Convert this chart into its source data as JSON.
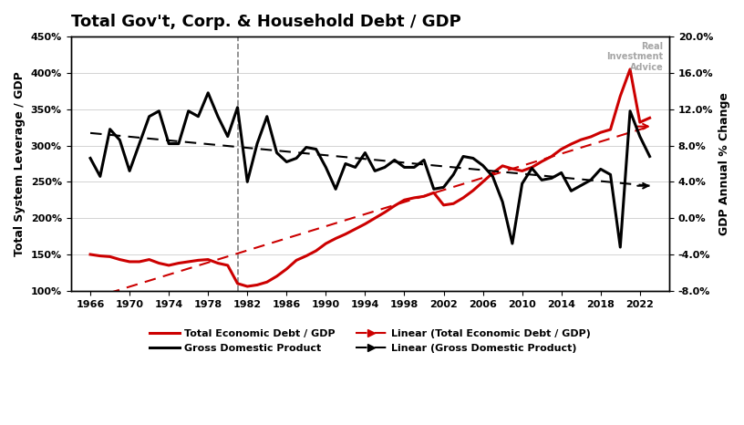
{
  "title": "Total Gov't, Corp. & Household Debt / GDP",
  "ylabel_left": "Total System Leverage / GDP",
  "ylabel_right": "GDP Annual % Change",
  "xlabel": "",
  "background_color": "#ffffff",
  "vline_x": 1981,
  "left_ylim": [
    1.0,
    4.5
  ],
  "right_ylim": [
    -0.08,
    0.2
  ],
  "left_yticks": [
    1.0,
    1.5,
    2.0,
    2.5,
    3.0,
    3.5,
    4.0,
    4.5
  ],
  "left_ytick_labels": [
    "100%",
    "150%",
    "200%",
    "250%",
    "300%",
    "350%",
    "400%",
    "450%"
  ],
  "right_yticks": [
    -0.08,
    -0.04,
    0.0,
    0.04,
    0.08,
    0.12,
    0.16,
    0.2
  ],
  "right_ytick_labels": [
    "-8.0%",
    "-4.0%",
    "0.0%",
    "4.0%",
    "8.0%",
    "12.0%",
    "16.0%",
    "20.0%"
  ],
  "xticks": [
    1966,
    1970,
    1974,
    1978,
    1982,
    1986,
    1990,
    1994,
    1998,
    2002,
    2006,
    2010,
    2014,
    2018,
    2022
  ],
  "debt_color": "#cc0000",
  "gdp_color": "#000000",
  "debt_trend_color": "#cc0000",
  "gdp_trend_color": "#000000",
  "debt_linewidth": 2.2,
  "gdp_linewidth": 2.2,
  "trend_linewidth": 1.5,
  "years_debt": [
    1966,
    1967,
    1968,
    1969,
    1970,
    1971,
    1972,
    1973,
    1974,
    1975,
    1976,
    1977,
    1978,
    1979,
    1980,
    1981,
    1982,
    1983,
    1984,
    1985,
    1986,
    1987,
    1988,
    1989,
    1990,
    1991,
    1992,
    1993,
    1994,
    1995,
    1996,
    1997,
    1998,
    1999,
    2000,
    2001,
    2002,
    2003,
    2004,
    2005,
    2006,
    2007,
    2008,
    2009,
    2010,
    2011,
    2012,
    2013,
    2014,
    2015,
    2016,
    2017,
    2018,
    2019,
    2020,
    2021,
    2022,
    2023
  ],
  "debt_values": [
    1.5,
    1.48,
    1.47,
    1.43,
    1.4,
    1.4,
    1.43,
    1.38,
    1.35,
    1.38,
    1.4,
    1.42,
    1.43,
    1.38,
    1.35,
    1.1,
    1.06,
    1.08,
    1.12,
    1.2,
    1.3,
    1.42,
    1.48,
    1.55,
    1.65,
    1.72,
    1.78,
    1.85,
    1.92,
    2.0,
    2.08,
    2.17,
    2.25,
    2.28,
    2.3,
    2.35,
    2.18,
    2.2,
    2.28,
    2.38,
    2.5,
    2.62,
    2.72,
    2.68,
    2.65,
    2.7,
    2.78,
    2.85,
    2.95,
    3.02,
    3.08,
    3.12,
    3.18,
    3.22,
    3.68,
    4.05,
    3.32,
    3.38
  ],
  "years_gdp": [
    1966,
    1967,
    1968,
    1969,
    1970,
    1971,
    1972,
    1973,
    1974,
    1975,
    1976,
    1977,
    1978,
    1979,
    1980,
    1981,
    1982,
    1983,
    1984,
    1985,
    1986,
    1987,
    1988,
    1989,
    1990,
    1991,
    1992,
    1993,
    1994,
    1995,
    1996,
    1997,
    1998,
    1999,
    2000,
    2001,
    2002,
    2003,
    2004,
    2005,
    2006,
    2007,
    2008,
    2009,
    2010,
    2011,
    2012,
    2013,
    2014,
    2015,
    2016,
    2017,
    2018,
    2019,
    2020,
    2021,
    2022,
    2023
  ],
  "gdp_values": [
    0.066,
    0.046,
    0.098,
    0.086,
    0.052,
    0.082,
    0.112,
    0.118,
    0.082,
    0.082,
    0.118,
    0.112,
    0.138,
    0.112,
    0.09,
    0.122,
    0.04,
    0.082,
    0.112,
    0.072,
    0.062,
    0.066,
    0.078,
    0.076,
    0.056,
    0.032,
    0.06,
    0.056,
    0.072,
    0.052,
    0.056,
    0.064,
    0.056,
    0.056,
    0.064,
    0.032,
    0.034,
    0.048,
    0.068,
    0.066,
    0.058,
    0.046,
    0.018,
    -0.028,
    0.038,
    0.055,
    0.042,
    0.044,
    0.05,
    0.03,
    0.036,
    0.042,
    0.054,
    0.048,
    -0.032,
    0.118,
    0.09,
    0.068
  ]
}
